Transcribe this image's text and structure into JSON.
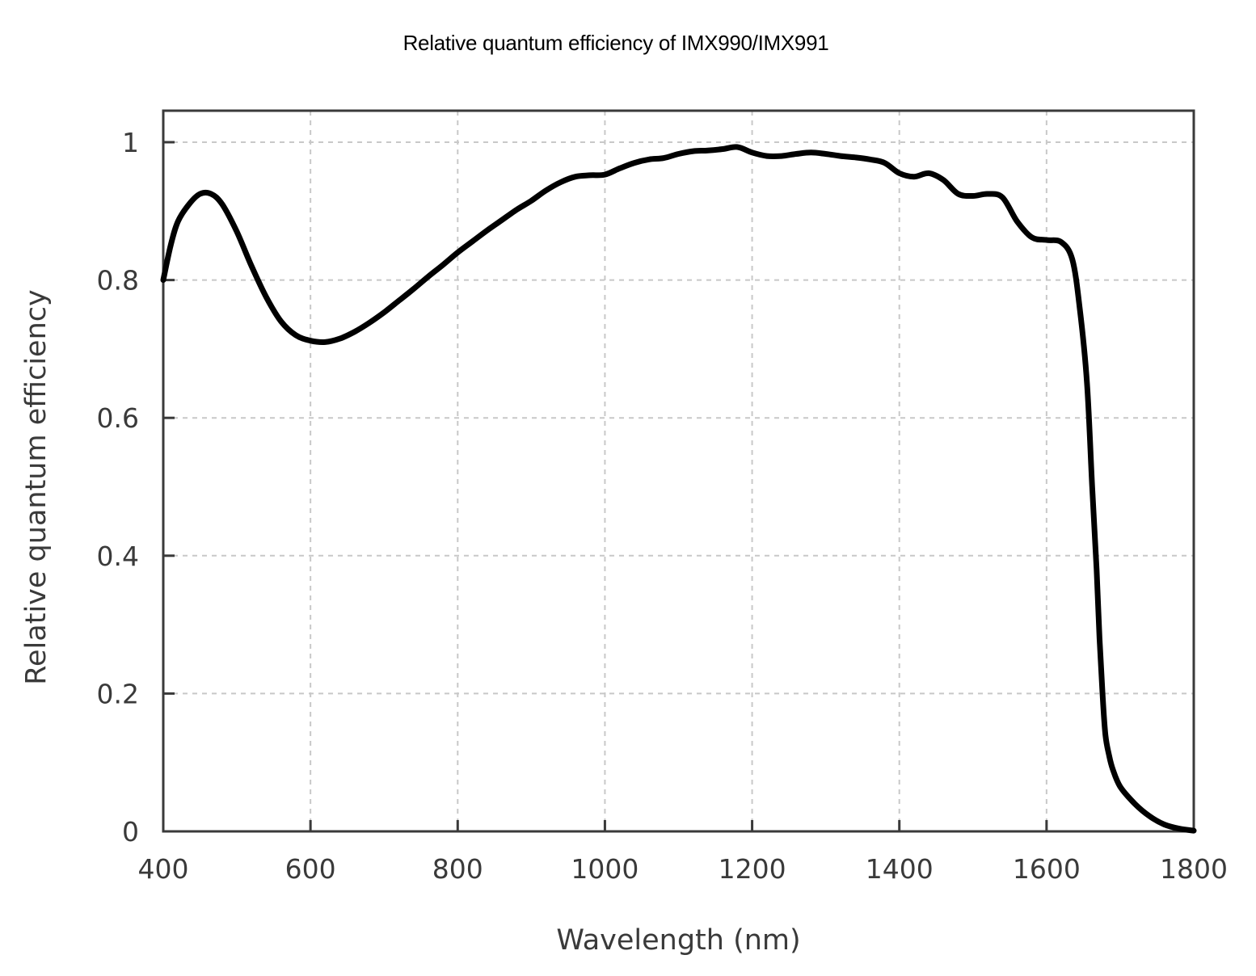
{
  "chart_data": {
    "type": "line",
    "title": "Relative quantum efficiency of IMX990/IMX991",
    "xlabel": "Wavelength (nm)",
    "ylabel": "Relative quantum efficiency",
    "xlim": [
      400,
      1800
    ],
    "ylim": [
      0,
      1.05
    ],
    "x_ticks": [
      400,
      600,
      800,
      1000,
      1200,
      1400,
      1600,
      1800
    ],
    "y_ticks": [
      0,
      0.2,
      0.4,
      0.6,
      0.8,
      1
    ],
    "x_tick_labels": [
      "400",
      "600",
      "800",
      "1000",
      "1200",
      "1400",
      "1600",
      "1800"
    ],
    "y_tick_labels": [
      "0",
      "0.2",
      "0.4",
      "0.6",
      "0.8",
      "1"
    ],
    "grid": true,
    "line_color": "#000000",
    "series": [
      {
        "x": [
          400,
          410,
          420,
          435,
          450,
          465,
          480,
          500,
          520,
          540,
          560,
          580,
          600,
          620,
          640,
          660,
          680,
          700,
          720,
          740,
          760,
          780,
          800,
          820,
          840,
          860,
          880,
          900,
          920,
          940,
          960,
          980,
          1000,
          1020,
          1040,
          1060,
          1080,
          1100,
          1120,
          1140,
          1160,
          1180,
          1200,
          1220,
          1240,
          1260,
          1280,
          1300,
          1320,
          1340,
          1360,
          1380,
          1400,
          1420,
          1440,
          1460,
          1480,
          1500,
          1520,
          1540,
          1560,
          1580,
          1600,
          1620,
          1635,
          1645,
          1655,
          1662,
          1668,
          1672,
          1676,
          1680,
          1685,
          1690,
          1700,
          1720,
          1740,
          1760,
          1780,
          1800
        ],
        "y": [
          0.8,
          0.85,
          0.885,
          0.91,
          0.925,
          0.925,
          0.91,
          0.87,
          0.82,
          0.775,
          0.74,
          0.72,
          0.712,
          0.71,
          0.715,
          0.725,
          0.738,
          0.753,
          0.77,
          0.787,
          0.805,
          0.822,
          0.84,
          0.856,
          0.872,
          0.887,
          0.902,
          0.915,
          0.93,
          0.942,
          0.95,
          0.952,
          0.953,
          0.962,
          0.97,
          0.975,
          0.977,
          0.983,
          0.987,
          0.988,
          0.99,
          0.993,
          0.985,
          0.98,
          0.98,
          0.983,
          0.985,
          0.983,
          0.98,
          0.978,
          0.975,
          0.97,
          0.955,
          0.95,
          0.955,
          0.945,
          0.925,
          0.922,
          0.925,
          0.92,
          0.885,
          0.862,
          0.858,
          0.855,
          0.83,
          0.76,
          0.65,
          0.5,
          0.38,
          0.28,
          0.2,
          0.14,
          0.11,
          0.09,
          0.065,
          0.04,
          0.022,
          0.01,
          0.004,
          0.001
        ]
      }
    ]
  }
}
